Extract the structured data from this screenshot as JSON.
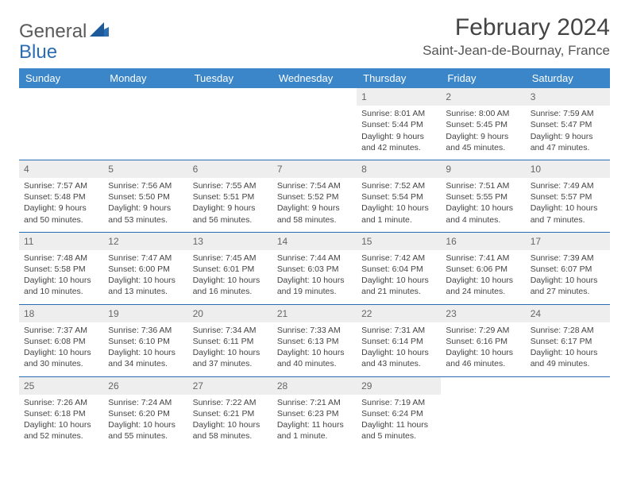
{
  "brand": {
    "part1": "General",
    "part2": "Blue"
  },
  "title": "February 2024",
  "location": "Saint-Jean-de-Bournay, France",
  "colors": {
    "header_bg": "#3a86c8",
    "row_border": "#2a6db3",
    "daynum_bg": "#eeeeee",
    "text": "#444444",
    "brand_gray": "#5a5a5a",
    "brand_blue": "#2a6db3"
  },
  "weekdays": [
    "Sunday",
    "Monday",
    "Tuesday",
    "Wednesday",
    "Thursday",
    "Friday",
    "Saturday"
  ],
  "first_weekday_index": 4,
  "days": [
    {
      "n": 1,
      "sunrise": "8:01 AM",
      "sunset": "5:44 PM",
      "daylight": "9 hours and 42 minutes."
    },
    {
      "n": 2,
      "sunrise": "8:00 AM",
      "sunset": "5:45 PM",
      "daylight": "9 hours and 45 minutes."
    },
    {
      "n": 3,
      "sunrise": "7:59 AM",
      "sunset": "5:47 PM",
      "daylight": "9 hours and 47 minutes."
    },
    {
      "n": 4,
      "sunrise": "7:57 AM",
      "sunset": "5:48 PM",
      "daylight": "9 hours and 50 minutes."
    },
    {
      "n": 5,
      "sunrise": "7:56 AM",
      "sunset": "5:50 PM",
      "daylight": "9 hours and 53 minutes."
    },
    {
      "n": 6,
      "sunrise": "7:55 AM",
      "sunset": "5:51 PM",
      "daylight": "9 hours and 56 minutes."
    },
    {
      "n": 7,
      "sunrise": "7:54 AM",
      "sunset": "5:52 PM",
      "daylight": "9 hours and 58 minutes."
    },
    {
      "n": 8,
      "sunrise": "7:52 AM",
      "sunset": "5:54 PM",
      "daylight": "10 hours and 1 minute."
    },
    {
      "n": 9,
      "sunrise": "7:51 AM",
      "sunset": "5:55 PM",
      "daylight": "10 hours and 4 minutes."
    },
    {
      "n": 10,
      "sunrise": "7:49 AM",
      "sunset": "5:57 PM",
      "daylight": "10 hours and 7 minutes."
    },
    {
      "n": 11,
      "sunrise": "7:48 AM",
      "sunset": "5:58 PM",
      "daylight": "10 hours and 10 minutes."
    },
    {
      "n": 12,
      "sunrise": "7:47 AM",
      "sunset": "6:00 PM",
      "daylight": "10 hours and 13 minutes."
    },
    {
      "n": 13,
      "sunrise": "7:45 AM",
      "sunset": "6:01 PM",
      "daylight": "10 hours and 16 minutes."
    },
    {
      "n": 14,
      "sunrise": "7:44 AM",
      "sunset": "6:03 PM",
      "daylight": "10 hours and 19 minutes."
    },
    {
      "n": 15,
      "sunrise": "7:42 AM",
      "sunset": "6:04 PM",
      "daylight": "10 hours and 21 minutes."
    },
    {
      "n": 16,
      "sunrise": "7:41 AM",
      "sunset": "6:06 PM",
      "daylight": "10 hours and 24 minutes."
    },
    {
      "n": 17,
      "sunrise": "7:39 AM",
      "sunset": "6:07 PM",
      "daylight": "10 hours and 27 minutes."
    },
    {
      "n": 18,
      "sunrise": "7:37 AM",
      "sunset": "6:08 PM",
      "daylight": "10 hours and 30 minutes."
    },
    {
      "n": 19,
      "sunrise": "7:36 AM",
      "sunset": "6:10 PM",
      "daylight": "10 hours and 34 minutes."
    },
    {
      "n": 20,
      "sunrise": "7:34 AM",
      "sunset": "6:11 PM",
      "daylight": "10 hours and 37 minutes."
    },
    {
      "n": 21,
      "sunrise": "7:33 AM",
      "sunset": "6:13 PM",
      "daylight": "10 hours and 40 minutes."
    },
    {
      "n": 22,
      "sunrise": "7:31 AM",
      "sunset": "6:14 PM",
      "daylight": "10 hours and 43 minutes."
    },
    {
      "n": 23,
      "sunrise": "7:29 AM",
      "sunset": "6:16 PM",
      "daylight": "10 hours and 46 minutes."
    },
    {
      "n": 24,
      "sunrise": "7:28 AM",
      "sunset": "6:17 PM",
      "daylight": "10 hours and 49 minutes."
    },
    {
      "n": 25,
      "sunrise": "7:26 AM",
      "sunset": "6:18 PM",
      "daylight": "10 hours and 52 minutes."
    },
    {
      "n": 26,
      "sunrise": "7:24 AM",
      "sunset": "6:20 PM",
      "daylight": "10 hours and 55 minutes."
    },
    {
      "n": 27,
      "sunrise": "7:22 AM",
      "sunset": "6:21 PM",
      "daylight": "10 hours and 58 minutes."
    },
    {
      "n": 28,
      "sunrise": "7:21 AM",
      "sunset": "6:23 PM",
      "daylight": "11 hours and 1 minute."
    },
    {
      "n": 29,
      "sunrise": "7:19 AM",
      "sunset": "6:24 PM",
      "daylight": "11 hours and 5 minutes."
    }
  ],
  "labels": {
    "sunrise": "Sunrise:",
    "sunset": "Sunset:",
    "daylight": "Daylight:"
  }
}
